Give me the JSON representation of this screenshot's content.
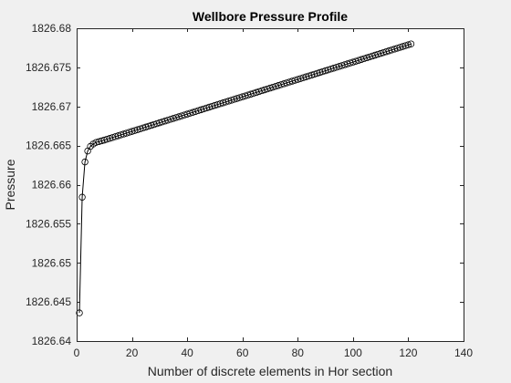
{
  "chart_data": {
    "type": "line",
    "title": "Wellbore Pressure Profile",
    "xlabel": "Number of discrete elements in Hor section",
    "ylabel": "Pressure",
    "xlim": [
      0,
      140
    ],
    "ylim": [
      1826.64,
      1826.68
    ],
    "xticks": [
      0,
      20,
      40,
      60,
      80,
      100,
      120,
      140
    ],
    "yticks": [
      1826.64,
      1826.645,
      1826.65,
      1826.655,
      1826.66,
      1826.665,
      1826.67,
      1826.675,
      1826.68
    ],
    "ytick_labels": [
      "1826.64",
      "1826.645",
      "1826.65",
      "1826.655",
      "1826.66",
      "1826.665",
      "1826.67",
      "1826.675",
      "1826.68"
    ],
    "xtick_labels": [
      "0",
      "20",
      "40",
      "60",
      "80",
      "100",
      "120",
      "140"
    ],
    "grid": false,
    "marker": "circle",
    "series": [
      {
        "name": "Pressure",
        "n_points": 121,
        "head_points": [
          [
            1,
            1826.6436
          ],
          [
            2,
            1826.6584
          ],
          [
            3,
            1826.6629
          ],
          [
            4,
            1826.6643
          ],
          [
            5,
            1826.6649
          ],
          [
            6,
            1826.6652
          ],
          [
            7,
            1826.6654
          ],
          [
            8,
            1826.6655
          ],
          [
            9,
            1826.6656
          ],
          [
            10,
            1826.6657
          ]
        ],
        "linear_tail": {
          "x_start": 10,
          "y_start": 1826.6657,
          "x_end": 121,
          "y_end": 1826.678
        }
      }
    ]
  }
}
